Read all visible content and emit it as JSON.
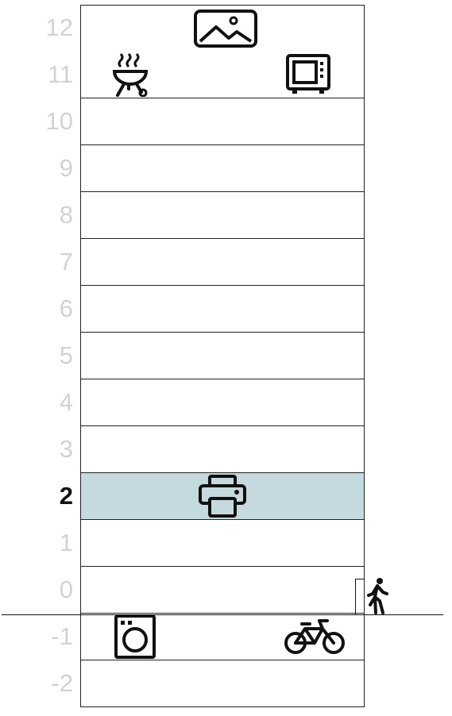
{
  "floors": [
    {
      "label": "12",
      "current": false,
      "icons": [
        "image-icon"
      ]
    },
    {
      "label": "11",
      "current": false,
      "icons": [
        "grill-icon",
        "microwave-icon"
      ]
    },
    {
      "label": "10",
      "current": false,
      "icons": []
    },
    {
      "label": "9",
      "current": false,
      "icons": []
    },
    {
      "label": "8",
      "current": false,
      "icons": []
    },
    {
      "label": "7",
      "current": false,
      "icons": []
    },
    {
      "label": "6",
      "current": false,
      "icons": []
    },
    {
      "label": "5",
      "current": false,
      "icons": []
    },
    {
      "label": "4",
      "current": false,
      "icons": []
    },
    {
      "label": "3",
      "current": false,
      "icons": []
    },
    {
      "label": "2",
      "current": true,
      "icons": [
        "printer-icon"
      ]
    },
    {
      "label": "1",
      "current": false,
      "icons": []
    },
    {
      "label": "0",
      "current": false,
      "icons": []
    },
    {
      "label": "-1",
      "current": false,
      "icons": [
        "washing-machine-icon",
        "bicycle-icon"
      ]
    },
    {
      "label": "-2",
      "current": false,
      "icons": []
    }
  ],
  "entrance_icon": "walking-person-icon",
  "colors": {
    "current_floor": "#c4dadf",
    "inactive_label": "#d2d2d2",
    "active_label": "#111111",
    "lines": "#222222"
  }
}
